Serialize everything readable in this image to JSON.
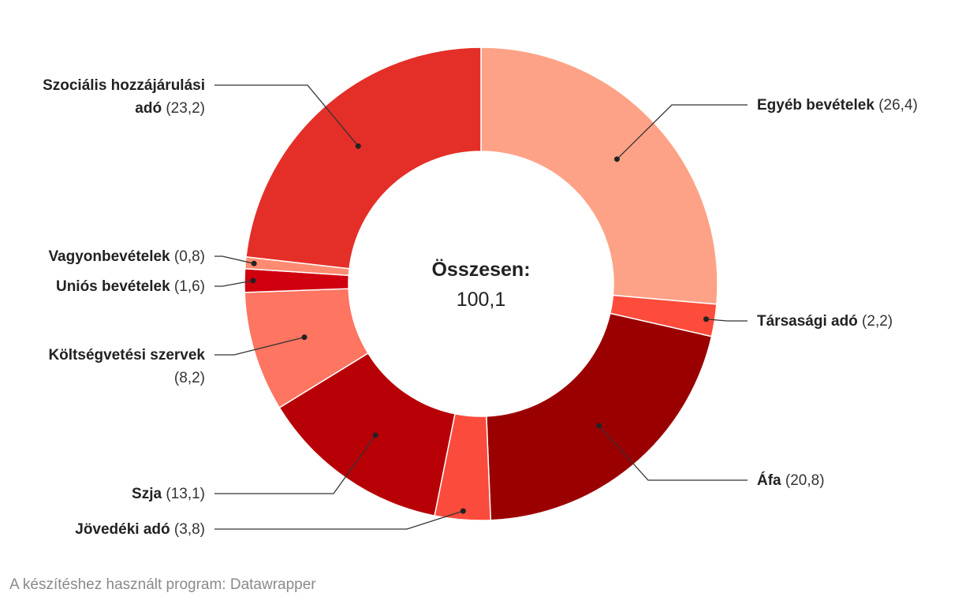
{
  "chart_data": {
    "type": "pie",
    "variant": "donut",
    "center": {
      "title": "Összesen:",
      "value": "100,1"
    },
    "slices": [
      {
        "label": "Egyéb bevételek",
        "value": 26.4,
        "value_label": "(26,4)",
        "color": "#fda286"
      },
      {
        "label": "Társasági adó",
        "value": 2.2,
        "value_label": "(2,2)",
        "color": "#fd4c3b"
      },
      {
        "label": "Áfa",
        "value": 20.8,
        "value_label": "(20,8)",
        "color": "#9b0000"
      },
      {
        "label": "Jövedéki adó",
        "value": 3.8,
        "value_label": "(3,8)",
        "color": "#fb4b3c"
      },
      {
        "label": "Szja",
        "value": 13.1,
        "value_label": "(13,1)",
        "color": "#b70006"
      },
      {
        "label": "Költségvetési szervek",
        "value": 8.2,
        "value_label": "(8,2)",
        "color": "#fe7561"
      },
      {
        "label": "Uniós bevételek",
        "value": 1.6,
        "value_label": "(1,6)",
        "color": "#d1000f"
      },
      {
        "label": "Vagyonbevételek",
        "value": 0.8,
        "value_label": "(0,8)",
        "color": "#fe8b71"
      },
      {
        "label": "Szociális hozzájárulási adó",
        "value": 23.2,
        "value_label": "(23,2)",
        "color": "#e42f28"
      }
    ]
  },
  "footer": {
    "credit": "A készítéshez használt program: Datawrapper"
  }
}
